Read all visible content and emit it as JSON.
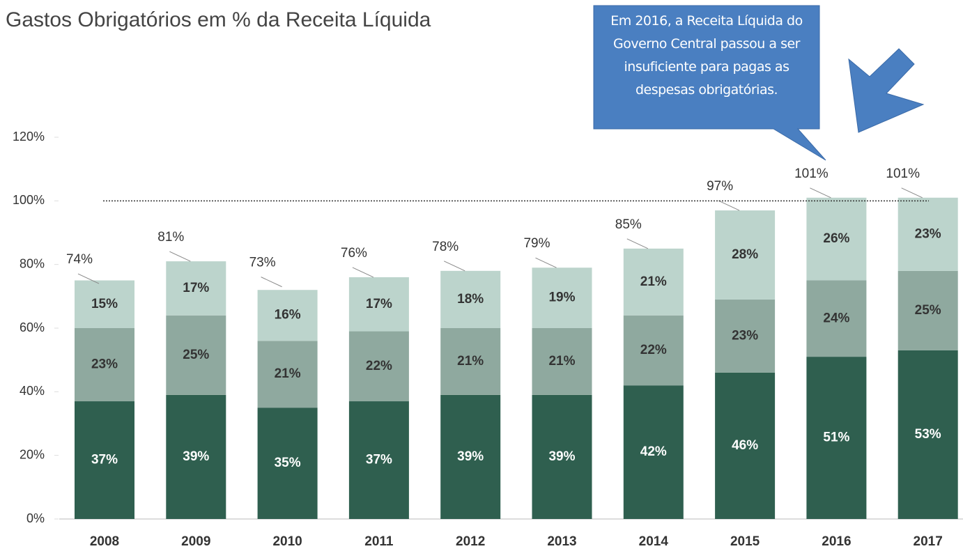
{
  "chart_data": {
    "type": "stacked-bar",
    "title": "Gastos Obrigatórios em % da Receita Líquida",
    "categories": [
      "2008",
      "2009",
      "2010",
      "2011",
      "2012",
      "2013",
      "2014",
      "2015",
      "2016",
      "2017"
    ],
    "series": [
      {
        "color": "#2f5f4f",
        "values": [
          37,
          39,
          35,
          37,
          39,
          39,
          42,
          46,
          51,
          53
        ],
        "value_labels": [
          "37%",
          "39%",
          "35%",
          "37%",
          "39%",
          "39%",
          "42%",
          "46%",
          "51%",
          "53%"
        ]
      },
      {
        "color": "#8fa99f",
        "values": [
          23,
          25,
          21,
          22,
          21,
          21,
          22,
          23,
          24,
          25
        ],
        "value_labels": [
          "23%",
          "25%",
          "21%",
          "22%",
          "21%",
          "21%",
          "22%",
          "23%",
          "24%",
          "25%"
        ]
      },
      {
        "color": "#bcd4cc",
        "values": [
          15,
          17,
          16,
          17,
          18,
          19,
          21,
          28,
          26,
          23
        ],
        "value_labels": [
          "15%",
          "17%",
          "16%",
          "17%",
          "18%",
          "19%",
          "21%",
          "28%",
          "26%",
          "23%"
        ]
      }
    ],
    "totals": [
      74,
      81,
      73,
      76,
      78,
      79,
      85,
      97,
      101,
      101
    ],
    "total_labels": [
      "74%",
      "81%",
      "73%",
      "76%",
      "78%",
      "79%",
      "85%",
      "97%",
      "101%",
      "101%"
    ],
    "reference_line": 100,
    "annotation": "Em 2016, a Receita Líquida do Governo Central passou a ser insuficiente para pagas as despesas obrigatórias.",
    "ylim": [
      0,
      120
    ],
    "yticks": [
      {
        "value": 0,
        "label": "0%"
      },
      {
        "value": 20,
        "label": "20%"
      },
      {
        "value": 40,
        "label": "40%"
      },
      {
        "value": 60,
        "label": "60%"
      },
      {
        "value": 80,
        "label": "80%"
      },
      {
        "value": 100,
        "label": "100%"
      },
      {
        "value": 120,
        "label": "120%"
      }
    ]
  }
}
